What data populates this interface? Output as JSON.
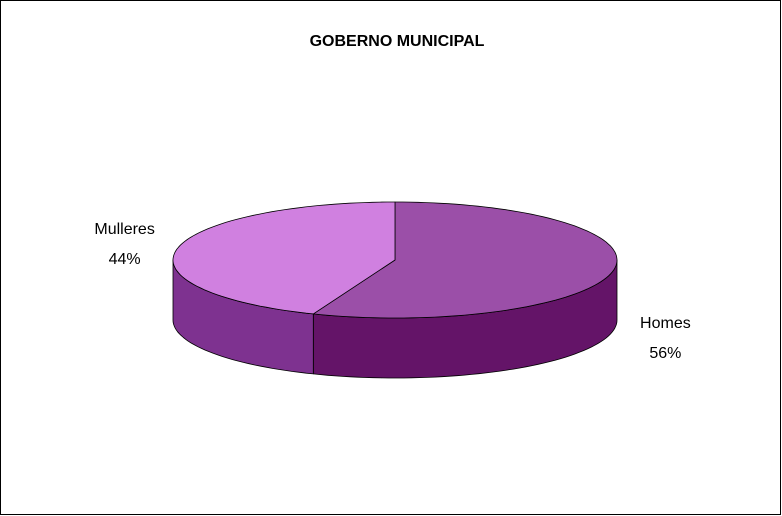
{
  "chart_data": {
    "type": "pie",
    "title": "GOBERNO MUNICIPAL",
    "categories": [
      "Homes",
      "Mulleres"
    ],
    "values": [
      56,
      44
    ],
    "value_labels": [
      "56%",
      "44%"
    ],
    "colors": [
      "#9b4fa8",
      "#d080e0"
    ],
    "side_colors": [
      "#641468",
      "#7e3290"
    ]
  }
}
